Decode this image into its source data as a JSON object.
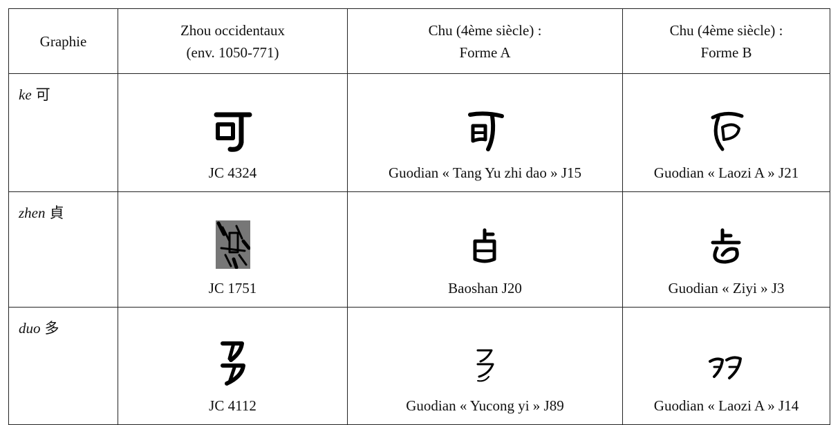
{
  "table": {
    "header": [
      [
        "Graphie"
      ],
      [
        "Zhou occidentaux",
        "(env. 1050-771)"
      ],
      [
        "Chu (4ème siècle) :",
        "Forme A"
      ],
      [
        "Chu (4ème siècle) :",
        "Forme B"
      ]
    ],
    "rows": [
      {
        "pinyin": "ke",
        "hanzi": "可",
        "sources": [
          "JC 4324",
          "Guodian « Tang Yu zhi dao » J15",
          "Guodian « Laozi A » J21"
        ]
      },
      {
        "pinyin": "zhen",
        "hanzi": "貞",
        "sources": [
          "JC 1751",
          "Baoshan J20",
          "Guodian « Ziyi » J3"
        ]
      },
      {
        "pinyin": "duo",
        "hanzi": "多",
        "sources": [
          "JC 4112",
          "Guodian « Yucong yi » J89",
          "Guodian « Laozi A » J14"
        ]
      }
    ]
  }
}
